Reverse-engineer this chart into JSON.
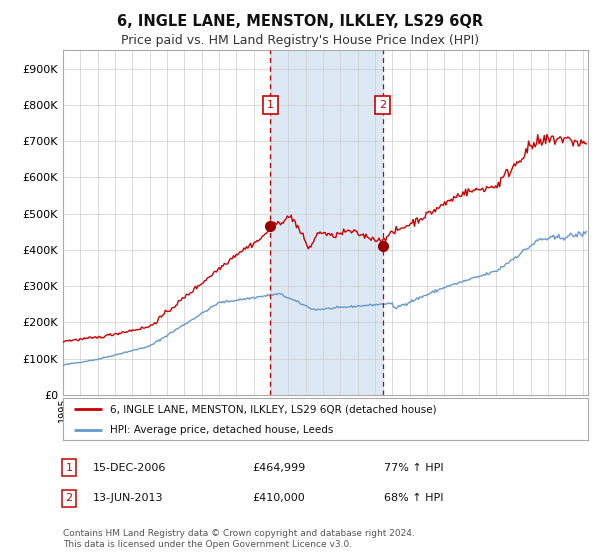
{
  "title": "6, INGLE LANE, MENSTON, ILKLEY, LS29 6QR",
  "subtitle": "Price paid vs. HM Land Registry's House Price Index (HPI)",
  "legend_line1": "6, INGLE LANE, MENSTON, ILKLEY, LS29 6QR (detached house)",
  "legend_line2": "HPI: Average price, detached house, Leeds",
  "annotation1_date": "15-DEC-2006",
  "annotation1_price": "£464,999",
  "annotation1_hpi": "77% ↑ HPI",
  "annotation2_date": "13-JUN-2013",
  "annotation2_price": "£410,000",
  "annotation2_hpi": "68% ↑ HPI",
  "footnote": "Contains HM Land Registry data © Crown copyright and database right 2024.\nThis data is licensed under the Open Government Licence v3.0.",
  "red_line_color": "#cc0000",
  "blue_line_color": "#6699cc",
  "background_color": "#ffffff",
  "grid_color": "#cccccc",
  "highlight_fill": "#dce9f5",
  "purchase1_x": 2006.96,
  "purchase1_y": 464999,
  "purchase2_x": 2013.45,
  "purchase2_y": 410000,
  "ylim": [
    0,
    950000
  ],
  "yticks": [
    0,
    100000,
    200000,
    300000,
    400000,
    500000,
    600000,
    700000,
    800000,
    900000
  ],
  "xmin": 1995,
  "xmax": 2025.3
}
